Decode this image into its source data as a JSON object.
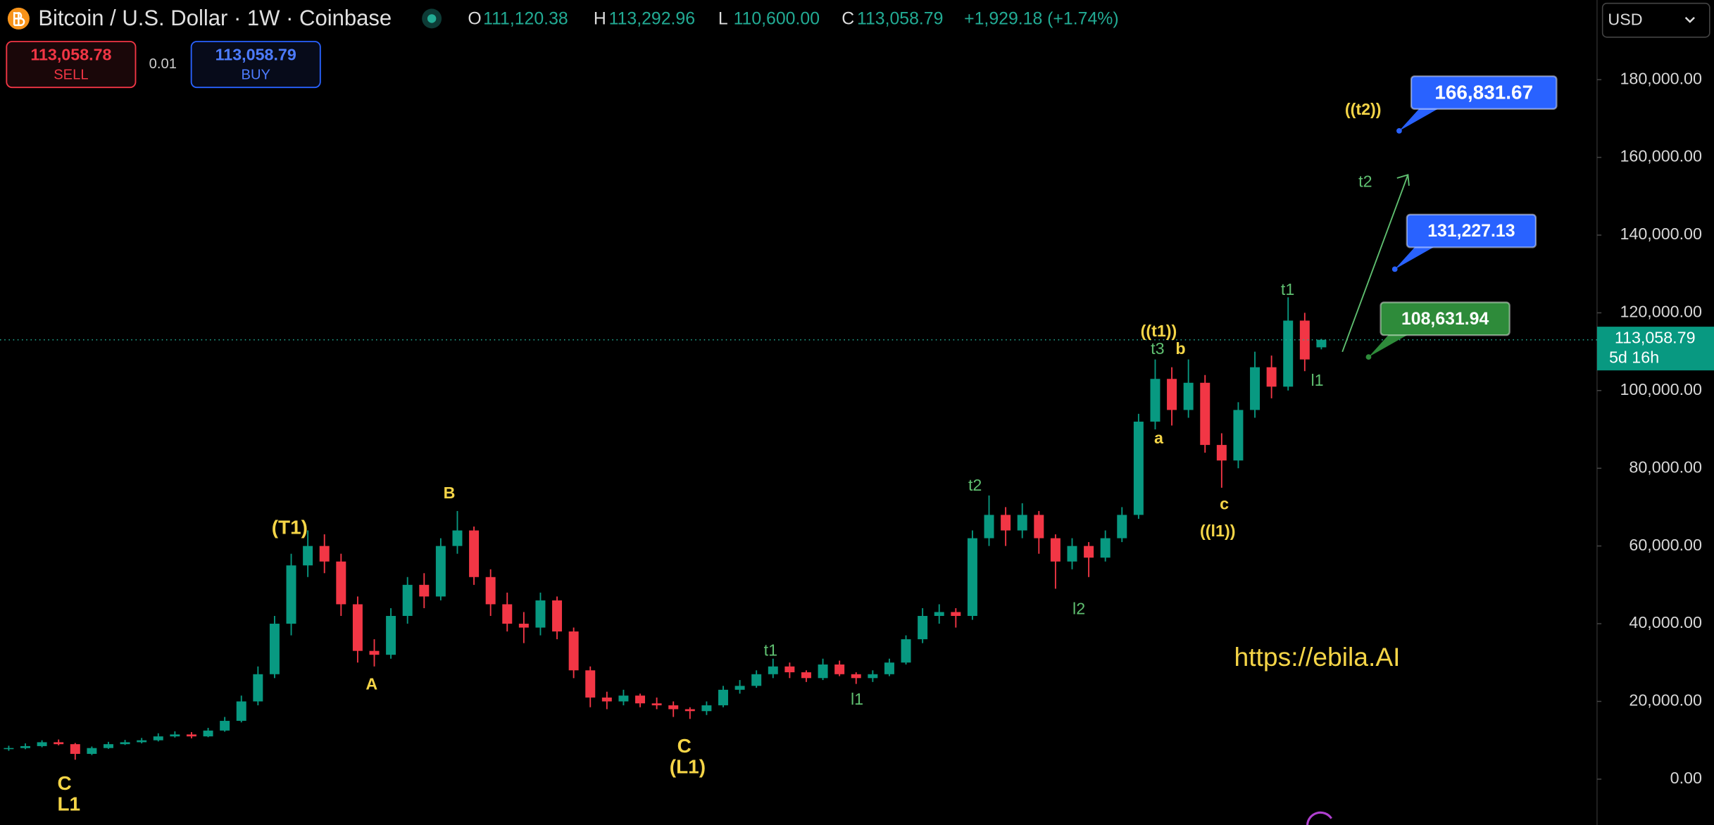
{
  "chart_data": {
    "type": "candlestick",
    "title": "Bitcoin / U.S. Dollar · 1W · Coinbase",
    "ohlc_header": [
      {
        "key": "O",
        "text": "111,120.38"
      },
      {
        "key": "H",
        "text": "113,292.96"
      },
      {
        "key": "L",
        "text": "110,600.00"
      },
      {
        "key": "C",
        "text": "113,058.79"
      }
    ],
    "change": "+1,929.18 (+1.74%)",
    "sell": {
      "price": "113,058.78",
      "label": "SELL"
    },
    "buy": {
      "price": "113,058.79",
      "label": "BUY"
    },
    "quantity": "0.01",
    "currency": "USD",
    "current_price": {
      "value": 113058.79,
      "label": "113,058.79"
    },
    "countdown": "5d 16h",
    "watermark": "https://ebila.AI",
    "up_color": "#089981",
    "down_color": "#f23645",
    "open": [
      7800,
      8000,
      8500,
      9500,
      9000,
      6500,
      8000,
      9000,
      9500,
      10000,
      11000,
      11500,
      11000,
      12500,
      15000,
      20000,
      27000,
      40000,
      55000,
      60000,
      56000,
      45000,
      33000,
      32000,
      42000,
      50000,
      47000,
      60000,
      64000,
      52000,
      45000,
      40000,
      39000,
      46000,
      38000,
      28000,
      21000,
      20000,
      21500,
      19500,
      19000,
      18000,
      17500,
      19000,
      23000,
      24000,
      27000,
      29000,
      27500,
      26000,
      29500,
      27000,
      26000,
      27000,
      30000,
      36000,
      42000,
      43000,
      42000,
      62000,
      68000,
      64000,
      68000,
      62000,
      56000,
      60000,
      57000,
      62000,
      68000,
      92000,
      103000,
      95000,
      102000,
      86000,
      82000,
      95000,
      106000,
      101000,
      118000,
      111120.38
    ],
    "high": [
      8600,
      9200,
      10000,
      10200,
      9300,
      8400,
      9600,
      10100,
      10600,
      11800,
      12300,
      12100,
      13200,
      16000,
      21500,
      29000,
      42000,
      58000,
      64000,
      63000,
      58000,
      47000,
      36000,
      44000,
      52000,
      53000,
      62000,
      69000,
      65000,
      54000,
      48000,
      43000,
      48000,
      47000,
      39000,
      29000,
      22500,
      23000,
      22000,
      21000,
      20000,
      18500,
      20000,
      24000,
      25500,
      28000,
      31000,
      30000,
      28000,
      31000,
      30500,
      27500,
      28000,
      31000,
      37000,
      44000,
      45000,
      44000,
      64000,
      73000,
      70000,
      71000,
      69000,
      63000,
      62000,
      61000,
      64000,
      70000,
      94000,
      108000,
      106000,
      108000,
      104000,
      89000,
      97000,
      110000,
      109000,
      124000,
      120000,
      113292.96
    ],
    "low": [
      7300,
      7700,
      8200,
      8700,
      5000,
      6200,
      7800,
      8800,
      9200,
      9700,
      10700,
      10500,
      10800,
      12200,
      14600,
      19000,
      26000,
      37000,
      52000,
      53000,
      42000,
      30000,
      29000,
      31000,
      40000,
      44000,
      46000,
      58000,
      50000,
      42000,
      38000,
      35000,
      37000,
      36000,
      26000,
      18500,
      18000,
      19000,
      18500,
      18000,
      16000,
      15500,
      16500,
      18500,
      22000,
      23500,
      26000,
      26000,
      25000,
      25500,
      26500,
      24500,
      25000,
      26500,
      29500,
      35000,
      40000,
      39000,
      41000,
      60000,
      60000,
      62000,
      58000,
      49000,
      54000,
      52000,
      56000,
      61000,
      67000,
      90000,
      91000,
      93000,
      84000,
      75000,
      80000,
      93000,
      98000,
      100000,
      105000,
      110600
    ],
    "close": [
      8000,
      8500,
      9500,
      9000,
      6500,
      8000,
      9000,
      9500,
      10000,
      11000,
      11500,
      11000,
      12500,
      15000,
      20000,
      27000,
      40000,
      55000,
      60000,
      56000,
      45000,
      33000,
      32000,
      42000,
      50000,
      47000,
      60000,
      64000,
      52000,
      45000,
      40000,
      39000,
      46000,
      38000,
      28000,
      21000,
      20000,
      21500,
      19500,
      19000,
      18000,
      17500,
      19000,
      23000,
      24000,
      27000,
      29000,
      27500,
      26000,
      29500,
      27000,
      26000,
      27000,
      30000,
      36000,
      42000,
      43000,
      42000,
      62000,
      68000,
      64000,
      68000,
      62000,
      56000,
      60000,
      57000,
      62000,
      68000,
      92000,
      103000,
      95000,
      102000,
      86000,
      82000,
      95000,
      106000,
      101000,
      118000,
      108000,
      113058.79
    ],
    "ylim": [
      -11800,
      200500
    ],
    "yticks": [
      {
        "value": 0,
        "label": "0.00"
      },
      {
        "value": 20000,
        "label": "20,000.00"
      },
      {
        "value": 40000,
        "label": "40,000.00"
      },
      {
        "value": 60000,
        "label": "60,000.00"
      },
      {
        "value": 80000,
        "label": "80,000.00"
      },
      {
        "value": 100000,
        "label": "100,000.00"
      },
      {
        "value": 120000,
        "label": "120,000.00"
      },
      {
        "value": 140000,
        "label": "140,000.00"
      },
      {
        "value": 160000,
        "label": "160,000.00"
      },
      {
        "value": 180000,
        "label": "180,000.00"
      }
    ],
    "targets": [
      {
        "value": 166831.67,
        "label": "166,831.67",
        "color": "#2962ff"
      },
      {
        "value": 131227.13,
        "label": "131,227.13",
        "color": "#2962ff"
      },
      {
        "value": 108631.94,
        "label": "108,631.94",
        "color": "#2e8b3a"
      }
    ],
    "annotations": [
      {
        "text": "C",
        "color": "#f5d547"
      },
      {
        "text": "L1",
        "color": "#f5d547"
      },
      {
        "text": "(T1)",
        "color": "#f5d547"
      },
      {
        "text": "B",
        "color": "#f5d547"
      },
      {
        "text": "A",
        "color": "#f5d547"
      },
      {
        "text": "C",
        "color": "#f5d547"
      },
      {
        "text": "(L1)",
        "color": "#f5d547"
      },
      {
        "text": "t1",
        "color": "#5fbf70"
      },
      {
        "text": "l1",
        "color": "#5fbf70"
      },
      {
        "text": "t2",
        "color": "#5fbf70"
      },
      {
        "text": "l2",
        "color": "#5fbf70"
      },
      {
        "text": "((t1))",
        "color": "#f5d547"
      },
      {
        "text": "t3",
        "color": "#5fbf70"
      },
      {
        "text": "b",
        "color": "#f5d547"
      },
      {
        "text": "a",
        "color": "#f5d547"
      },
      {
        "text": "c",
        "color": "#f5d547"
      },
      {
        "text": "((l1))",
        "color": "#f5d547"
      },
      {
        "text": "t1",
        "color": "#5fbf70"
      },
      {
        "text": "l1",
        "color": "#5fbf70"
      },
      {
        "text": "t2",
        "color": "#5fbf70"
      },
      {
        "text": "((t2))",
        "color": "#f5d547"
      }
    ]
  }
}
